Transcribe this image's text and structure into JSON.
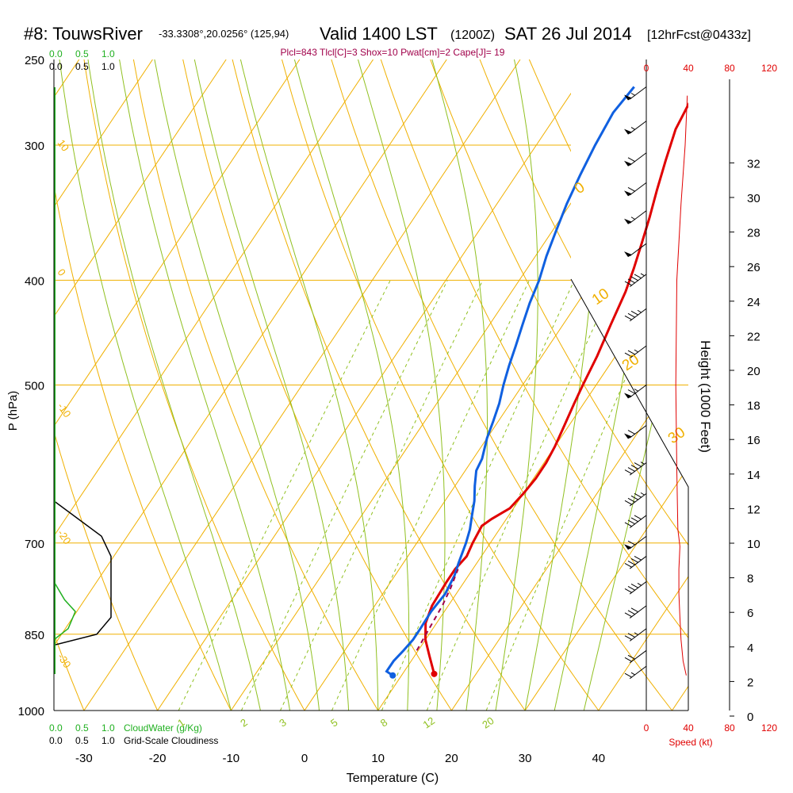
{
  "header": {
    "title_main": "#8: TouwsRiver",
    "title_coords": "-33.3308°,20.0256° (125,94)",
    "title_valid": "Valid 1400 LST",
    "title_z": "(1200Z)",
    "title_date": "SAT 26 Jul 2014",
    "title_fcst": "[12hrFcst@0433z]",
    "params": "Plcl=843 Tlcl[C]=3 Shox=10 Pwat[cm]=2 Cape[J]= 19"
  },
  "cloud_scale_top_green": [
    "0.0",
    "0.5",
    "1.0"
  ],
  "cloud_scale_top_black": [
    "0.0",
    "0.5",
    "1.0"
  ],
  "cloud_scale_bottom_green": [
    "0.0",
    "0.5",
    "1.0"
  ],
  "cloud_scale_bottom_black": [
    "0.0",
    "0.5",
    "1.0"
  ],
  "cloudwater_label": "CloudWater (g/Kg)",
  "cloudiness_label": "Grid-Scale Cloudiness",
  "speed_label": "Speed (kt)",
  "speed_ticks": [
    "0",
    "40",
    "80",
    "120"
  ],
  "colors": {
    "temperature": "#e00000",
    "dewpoint": "#1060e0",
    "isotherm": "#f0b000",
    "dry_adiabat": "#f0b000",
    "moist_adiabat": "#90c020",
    "mixing_ratio": "#90c020",
    "cloudwater": "#20b020",
    "speed": "#e00000",
    "param_text": "#a0004a"
  },
  "chart_data": {
    "type": "line",
    "xlabel": "Temperature (C)",
    "ylabel": "P (hPa)",
    "y2label": "Height (1000 Feet)",
    "x_ticks": [
      -30,
      -20,
      -10,
      0,
      10,
      20,
      30,
      40
    ],
    "x_range": [
      -34,
      44
    ],
    "p_ticks": [
      250,
      300,
      400,
      500,
      700,
      850,
      1000
    ],
    "p_range": [
      250,
      1000
    ],
    "height_ticks": [
      0,
      2,
      4,
      6,
      8,
      10,
      12,
      14,
      16,
      18,
      20,
      22,
      24,
      26,
      28,
      30,
      32
    ],
    "isotherm_labels": [
      "10",
      "0",
      "-10",
      "-20",
      "-30"
    ],
    "theta_labels": [
      "0",
      "10",
      "20",
      "30"
    ],
    "mixing_ratio_labels": [
      "1",
      "2",
      "3",
      "5",
      "8",
      "12",
      "20"
    ],
    "series": [
      {
        "points": [
          [
            14.3,
            925
          ],
          [
            12,
            890
          ],
          [
            10,
            860
          ],
          [
            8.5,
            830
          ],
          [
            7.8,
            800
          ],
          [
            7.6,
            760
          ],
          [
            7.6,
            740
          ],
          [
            8,
            720
          ],
          [
            7.6,
            700
          ],
          [
            7.3,
            675
          ],
          [
            8,
            665
          ],
          [
            9.5,
            650
          ],
          [
            10,
            630
          ],
          [
            10.3,
            610
          ],
          [
            10.3,
            590
          ],
          [
            10,
            570
          ],
          [
            9.5,
            550
          ],
          [
            8.7,
            520
          ],
          [
            8.2,
            500
          ],
          [
            7.5,
            470
          ],
          [
            6.5,
            440
          ],
          [
            5.5,
            410
          ],
          [
            4.5,
            390
          ],
          [
            3.3,
            370
          ],
          [
            2,
            350
          ],
          [
            0.5,
            330
          ],
          [
            -1,
            310
          ],
          [
            -2.5,
            290
          ],
          [
            -3.2,
            270
          ],
          [
            -3.3,
            260
          ]
        ]
      },
      {
        "points": [
          [
            8.8,
            928
          ],
          [
            7.6,
            920
          ],
          [
            7.6,
            900
          ],
          [
            8,
            880
          ],
          [
            8.3,
            860
          ],
          [
            8.3,
            840
          ],
          [
            8.2,
            810
          ],
          [
            8.5,
            780
          ],
          [
            8.1,
            750
          ],
          [
            7.5,
            730
          ],
          [
            6.7,
            700
          ],
          [
            6,
            680
          ],
          [
            5,
            660
          ],
          [
            4,
            640
          ],
          [
            2.7,
            620
          ],
          [
            1.5,
            600
          ],
          [
            1.2,
            585
          ],
          [
            0,
            560
          ],
          [
            -0.7,
            540
          ],
          [
            -1.5,
            520
          ],
          [
            -2.6,
            500
          ],
          [
            -3.6,
            480
          ],
          [
            -4.5,
            460
          ],
          [
            -5.5,
            440
          ],
          [
            -6.5,
            420
          ],
          [
            -7.3,
            400
          ],
          [
            -8.5,
            380
          ],
          [
            -9.5,
            360
          ],
          [
            -10.5,
            340
          ],
          [
            -11.3,
            320
          ],
          [
            -12,
            300
          ],
          [
            -12.5,
            280
          ],
          [
            -12,
            265
          ]
        ]
      },
      {
        "points": [
          [
            9.8,
            880
          ],
          [
            9.5,
            840
          ],
          [
            9.2,
            800
          ],
          [
            8.7,
            770
          ],
          [
            8,
            740
          ]
        ]
      }
    ],
    "wind_barbs": [
      {
        "p": 265,
        "speed_kt": 55
      },
      {
        "p": 285,
        "speed_kt": 55
      },
      {
        "p": 305,
        "speed_kt": 60
      },
      {
        "p": 325,
        "speed_kt": 60
      },
      {
        "p": 345,
        "speed_kt": 55
      },
      {
        "p": 370,
        "speed_kt": 50
      },
      {
        "p": 395,
        "speed_kt": 45
      },
      {
        "p": 425,
        "speed_kt": 35
      },
      {
        "p": 460,
        "speed_kt": 25
      },
      {
        "p": 500,
        "speed_kt": 65
      },
      {
        "p": 545,
        "speed_kt": 60
      },
      {
        "p": 590,
        "speed_kt": 45
      },
      {
        "p": 630,
        "speed_kt": 45
      },
      {
        "p": 660,
        "speed_kt": 40
      },
      {
        "p": 690,
        "speed_kt": 60
      },
      {
        "p": 720,
        "speed_kt": 40
      },
      {
        "p": 760,
        "speed_kt": 35
      },
      {
        "p": 800,
        "speed_kt": 30
      },
      {
        "p": 840,
        "speed_kt": 25
      },
      {
        "p": 880,
        "speed_kt": 20
      },
      {
        "p": 910,
        "speed_kt": 15
      }
    ],
    "speed_profile": [
      [
        23,
        928
      ],
      [
        20,
        900
      ],
      [
        18,
        860
      ],
      [
        17,
        820
      ],
      [
        16,
        780
      ],
      [
        16,
        740
      ],
      [
        17,
        705
      ],
      [
        15,
        680
      ],
      [
        14,
        600
      ],
      [
        13,
        500
      ],
      [
        14,
        400
      ],
      [
        18,
        340
      ],
      [
        22,
        300
      ],
      [
        24,
        270
      ]
    ],
    "cloudiness_profile": [
      [
        0,
        640
      ],
      [
        20,
        690
      ],
      [
        24,
        720
      ],
      [
        24,
        820
      ],
      [
        18,
        850
      ],
      [
        0,
        870
      ]
    ],
    "cloudwater_profile": [
      [
        0,
        760
      ],
      [
        0.3,
        790
      ],
      [
        0.6,
        810
      ],
      [
        0.4,
        840
      ],
      [
        0,
        860
      ]
    ]
  }
}
